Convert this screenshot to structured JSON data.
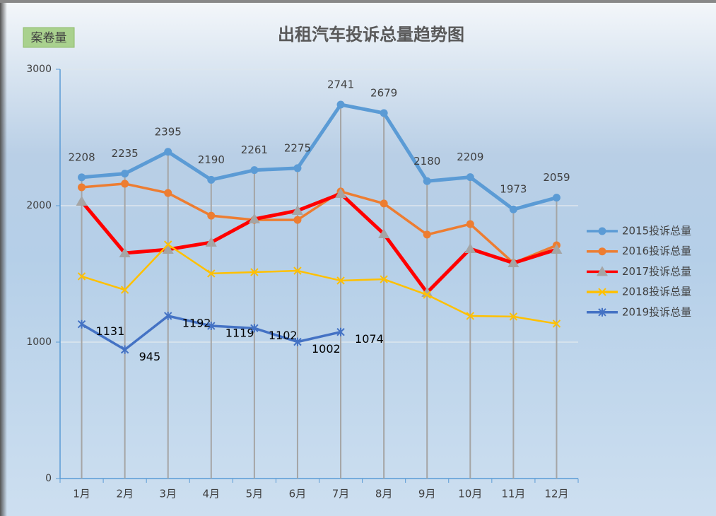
{
  "chart_data": {
    "type": "line",
    "title": "出租汽车投诉总量趋势图",
    "y_label": "案卷量",
    "categories": [
      "1月",
      "2月",
      "3月",
      "4月",
      "5月",
      "6月",
      "7月",
      "8月",
      "9月",
      "10月",
      "11月",
      "12月"
    ],
    "ylim": [
      0,
      3000
    ],
    "yticks": [
      0,
      1000,
      2000,
      3000
    ],
    "grid": true,
    "legend": "right",
    "drop_lines": true,
    "series": [
      {
        "name": "2015投诉总量",
        "color": "#5b9bd5",
        "marker": "circle",
        "data_labels": "above",
        "values": [
          2208,
          2235,
          2395,
          2190,
          2261,
          2275,
          2741,
          2679,
          2180,
          2209,
          1973,
          2059
        ]
      },
      {
        "name": "2016投诉总量",
        "color": "#ed7d31",
        "marker": "circle",
        "values": [
          2135,
          2161,
          2093,
          1927,
          1896,
          1896,
          2104,
          2016,
          1788,
          1865,
          1580,
          1710
        ]
      },
      {
        "name": "2017投诉总量",
        "color": "#ff0000",
        "marker": "triangle",
        "marker_color": "#a5a5a5",
        "values": [
          2031,
          1653,
          1679,
          1731,
          1902,
          1964,
          2088,
          1793,
          1363,
          1684,
          1580,
          1679
        ]
      },
      {
        "name": "2018投诉总量",
        "color": "#ffc000",
        "marker": "x",
        "values": [
          1482,
          1383,
          1715,
          1503,
          1513,
          1523,
          1451,
          1461,
          1347,
          1192,
          1187,
          1135
        ]
      },
      {
        "name": "2019投诉总量",
        "color": "#4472c4",
        "marker": "star",
        "data_labels": "right",
        "values": [
          1131,
          945,
          1192,
          1119,
          1102,
          1002,
          1074,
          null,
          null,
          null,
          null,
          null
        ]
      }
    ]
  }
}
